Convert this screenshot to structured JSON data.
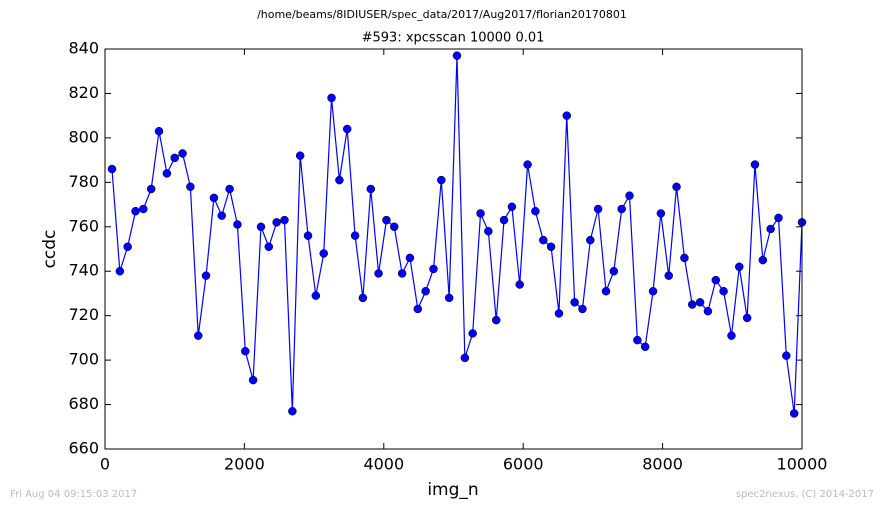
{
  "chart_data": {
    "type": "line",
    "suptitle": "/home/beams/8IDIUSER/spec_data/2017/Aug2017/florian20170801",
    "title": "#593: xpcsscan 10000 0.01",
    "xlabel": "img_n",
    "ylabel": "ccdc",
    "footer_left": "Fri Aug 04 09:15:03 2017",
    "footer_right": "spec2nexus, (C) 2014-2017",
    "xlim": [
      0,
      10000
    ],
    "xticks": [
      0,
      2000,
      4000,
      6000,
      8000,
      10000
    ],
    "ylim": [
      660,
      840
    ],
    "yticks": [
      660,
      680,
      700,
      720,
      740,
      760,
      780,
      800,
      820,
      840
    ],
    "x": [
      100,
      213,
      325,
      438,
      550,
      663,
      775,
      888,
      1000,
      1113,
      1225,
      1338,
      1450,
      1563,
      1675,
      1788,
      1900,
      2013,
      2125,
      2238,
      2350,
      2463,
      2575,
      2688,
      2800,
      2913,
      3025,
      3138,
      3250,
      3363,
      3475,
      3588,
      3700,
      3813,
      3925,
      4038,
      4150,
      4263,
      4375,
      4488,
      4600,
      4713,
      4825,
      4938,
      5050,
      5163,
      5275,
      5388,
      5500,
      5613,
      5725,
      5838,
      5950,
      6063,
      6175,
      6288,
      6400,
      6513,
      6625,
      6738,
      6850,
      6963,
      7075,
      7188,
      7300,
      7413,
      7525,
      7638,
      7750,
      7863,
      7975,
      8088,
      8200,
      8313,
      8425,
      8538,
      8650,
      8763,
      8875,
      8988,
      9100,
      9213,
      9325,
      9438,
      9550,
      9663,
      9775,
      9888,
      10000
    ],
    "series": [
      {
        "color": "#0000ff",
        "values": [
          786,
          740,
          751,
          767,
          768,
          777,
          803,
          784,
          791,
          793,
          778,
          711,
          738,
          773,
          765,
          777,
          761,
          704,
          691,
          760,
          751,
          762,
          763,
          677,
          792,
          756,
          729,
          748,
          818,
          781,
          804,
          756,
          728,
          777,
          739,
          763,
          760,
          739,
          746,
          723,
          731,
          741,
          781,
          728,
          837,
          701,
          712,
          766,
          758,
          718,
          763,
          769,
          734,
          788,
          767,
          754,
          751,
          721,
          810,
          726,
          723,
          754,
          768,
          731,
          740,
          768,
          774,
          709,
          706,
          731,
          766,
          738,
          778,
          746,
          725,
          726,
          722,
          736,
          731,
          711,
          742,
          719,
          788,
          745,
          759,
          764,
          702,
          676,
          762
        ]
      }
    ]
  }
}
